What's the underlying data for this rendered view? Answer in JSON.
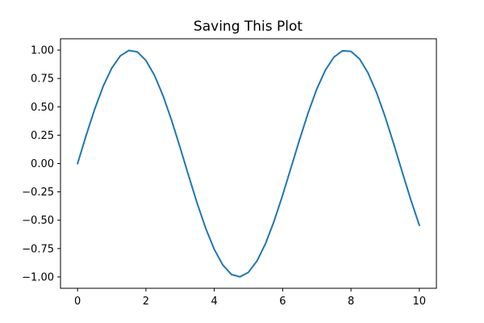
{
  "chart_data": {
    "type": "line",
    "title": "Saving This Plot",
    "xlabel": "",
    "ylabel": "",
    "xlim": [
      -0.5,
      10.5
    ],
    "ylim": [
      -1.1,
      1.1
    ],
    "x_ticks": [
      0,
      2,
      4,
      6,
      8,
      10
    ],
    "x_tick_labels": [
      "0",
      "2",
      "4",
      "6",
      "8",
      "10"
    ],
    "y_ticks": [
      1.0,
      0.75,
      0.5,
      0.25,
      0.0,
      -0.25,
      -0.5,
      -0.75,
      -1.0
    ],
    "y_tick_labels": [
      "1.00",
      "0.75",
      "0.50",
      "0.25",
      "0.00",
      "−0.25",
      "−0.50",
      "−0.75",
      "−1.00"
    ],
    "grid": false,
    "series": [
      {
        "color": "#1f77b4",
        "x": [
          0,
          0.25,
          0.5,
          0.75,
          1.0,
          1.25,
          1.5,
          1.75,
          2.0,
          2.25,
          2.5,
          2.75,
          3.0,
          3.25,
          3.5,
          3.75,
          4.0,
          4.25,
          4.5,
          4.75,
          5.0,
          5.25,
          5.5,
          5.75,
          6.0,
          6.25,
          6.5,
          6.75,
          7.0,
          7.25,
          7.5,
          7.75,
          8.0,
          8.25,
          8.5,
          8.75,
          9.0,
          9.25,
          9.5,
          9.75,
          10.0
        ],
        "y": [
          0.0,
          0.247,
          0.479,
          0.682,
          0.841,
          0.949,
          0.997,
          0.984,
          0.909,
          0.778,
          0.598,
          0.382,
          0.141,
          -0.108,
          -0.351,
          -0.572,
          -0.757,
          -0.895,
          -0.978,
          -0.999,
          -0.959,
          -0.859,
          -0.706,
          -0.508,
          -0.279,
          -0.033,
          0.215,
          0.45,
          0.657,
          0.823,
          0.938,
          0.994,
          0.989,
          0.923,
          0.798,
          0.625,
          0.412,
          0.174,
          -0.075,
          -0.319,
          -0.544
        ]
      }
    ]
  }
}
